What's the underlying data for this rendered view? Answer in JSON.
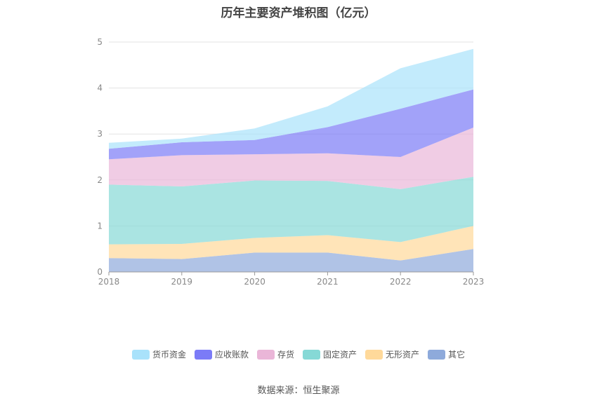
{
  "title": "历年主要资产堆积图（亿元）",
  "source": "数据来源：恒生聚源",
  "chart_data": {
    "type": "area",
    "stacked": true,
    "title": "历年主要资产堆积图（亿元）",
    "categories": [
      "2018",
      "2019",
      "2020",
      "2021",
      "2022",
      "2023"
    ],
    "yticks": [
      "0",
      "1",
      "2",
      "3",
      "4",
      "5"
    ],
    "ylim": [
      0,
      5
    ],
    "grid": true,
    "legend_position": "bottom",
    "series": [
      {
        "name": "其它",
        "color": "#8eaadb",
        "values": [
          0.3,
          0.28,
          0.42,
          0.42,
          0.25,
          0.5
        ]
      },
      {
        "name": "无形资产",
        "color": "#ffd99a",
        "values": [
          0.3,
          0.33,
          0.32,
          0.38,
          0.4,
          0.5
        ]
      },
      {
        "name": "固定资产",
        "color": "#86d9d6",
        "values": [
          1.3,
          1.25,
          1.25,
          1.18,
          1.15,
          1.07
        ]
      },
      {
        "name": "存货",
        "color": "#eab6d8",
        "values": [
          0.55,
          0.68,
          0.57,
          0.6,
          0.7,
          1.07
        ]
      },
      {
        "name": "应收账款",
        "color": "#7b7bf7",
        "values": [
          0.23,
          0.28,
          0.31,
          0.57,
          1.05,
          0.83
        ]
      },
      {
        "name": "货币资金",
        "color": "#a9e2fb",
        "values": [
          0.13,
          0.08,
          0.25,
          0.45,
          0.88,
          0.88
        ]
      }
    ]
  }
}
